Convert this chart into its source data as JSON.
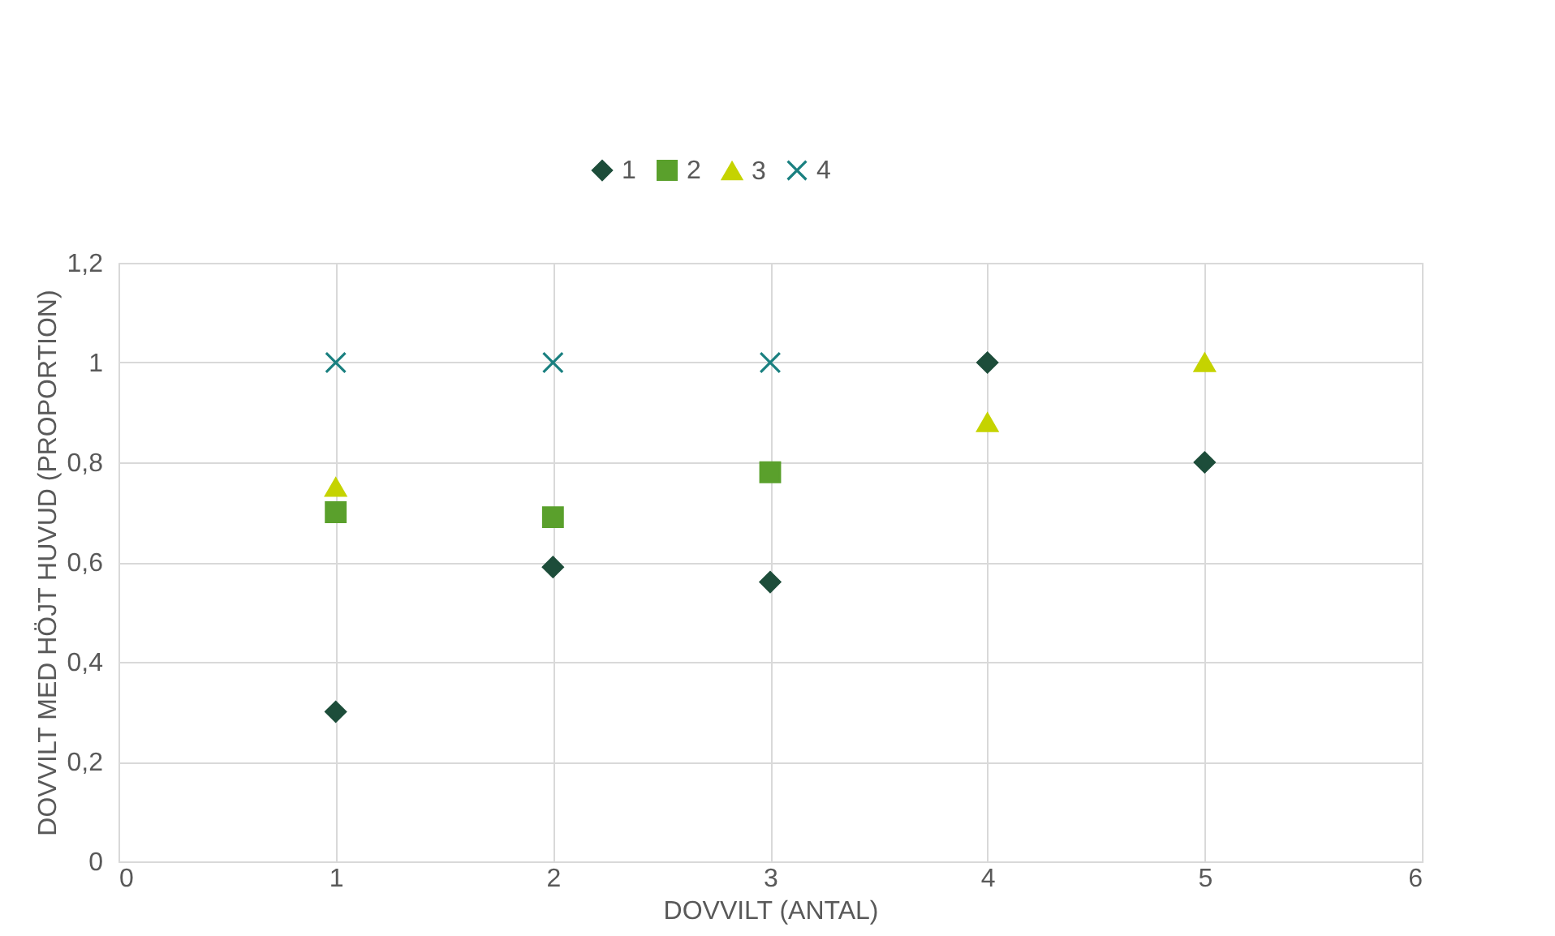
{
  "chart_data": {
    "type": "scatter",
    "xlabel": "DOVVILT (ANTAL)",
    "ylabel": "DOVVILT MED HÖJT HUVUD (PROPORTION)",
    "xlim": [
      0,
      6
    ],
    "xticks": [
      0,
      1,
      2,
      3,
      4,
      5,
      6
    ],
    "ylim": [
      0,
      1.2
    ],
    "yticks": [
      0,
      {
        "value": 0.2,
        "label": "0,2"
      },
      {
        "value": 0.4,
        "label": "0,4"
      },
      {
        "value": 0.6,
        "label": "0,6"
      },
      {
        "value": 0.8,
        "label": "0,8"
      },
      1,
      {
        "value": 1.2,
        "label": "1,2"
      }
    ],
    "grid": true,
    "legend": "top",
    "series": [
      {
        "name": "1",
        "color": "#1d4d3a",
        "marker": "diamond",
        "x": [
          1,
          2,
          3,
          4,
          5
        ],
        "values": [
          0.3,
          0.59,
          0.56,
          1.0,
          0.8
        ]
      },
      {
        "name": "2",
        "color": "#5aa02c",
        "marker": "square",
        "x": [
          1,
          2,
          3
        ],
        "values": [
          0.7,
          0.69,
          0.78
        ]
      },
      {
        "name": "3",
        "color": "#c5d300",
        "marker": "triangle",
        "x": [
          1,
          4,
          5
        ],
        "values": [
          0.75,
          0.88,
          1.0
        ]
      },
      {
        "name": "4",
        "color": "#1a8080",
        "marker": "cross",
        "x": [
          1,
          2,
          3
        ],
        "values": [
          1,
          1,
          1
        ]
      }
    ]
  }
}
